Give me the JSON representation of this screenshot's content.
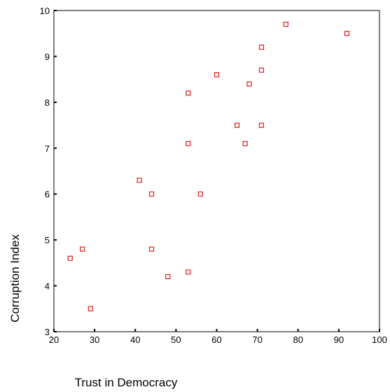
{
  "chart_data": {
    "type": "scatter",
    "title": "",
    "xlabel": "Trust in Democracy",
    "ylabel": "Corruption Index",
    "xlim": [
      20,
      100
    ],
    "ylim": [
      3,
      10
    ],
    "xticks": [
      20,
      30,
      40,
      50,
      60,
      70,
      80,
      90,
      100
    ],
    "yticks": [
      3,
      4,
      5,
      6,
      7,
      8,
      9,
      10
    ],
    "xtick_labels": [
      "20",
      "30",
      "40",
      "50",
      "60",
      "70",
      "80",
      "90",
      "100"
    ],
    "ytick_labels": [
      "3",
      "4",
      "5",
      "6",
      "7",
      "8",
      "9",
      "10"
    ],
    "grid": false,
    "marker": "hollow-square",
    "colors": {
      "marker": "#e0201b",
      "axis": "#000000",
      "background": "#ffffff"
    },
    "points": [
      {
        "x": 24,
        "y": 4.6
      },
      {
        "x": 27,
        "y": 4.8
      },
      {
        "x": 29,
        "y": 3.5
      },
      {
        "x": 41,
        "y": 6.3
      },
      {
        "x": 44,
        "y": 6.0
      },
      {
        "x": 44,
        "y": 4.8
      },
      {
        "x": 48,
        "y": 4.2
      },
      {
        "x": 53,
        "y": 8.2
      },
      {
        "x": 53,
        "y": 7.1
      },
      {
        "x": 53,
        "y": 4.3
      },
      {
        "x": 56,
        "y": 6.0
      },
      {
        "x": 60,
        "y": 8.6
      },
      {
        "x": 65,
        "y": 7.5
      },
      {
        "x": 67,
        "y": 7.1
      },
      {
        "x": 68,
        "y": 8.4
      },
      {
        "x": 71,
        "y": 9.2
      },
      {
        "x": 71,
        "y": 8.7
      },
      {
        "x": 71,
        "y": 7.5
      },
      {
        "x": 77,
        "y": 9.7
      },
      {
        "x": 92,
        "y": 9.5
      }
    ]
  }
}
